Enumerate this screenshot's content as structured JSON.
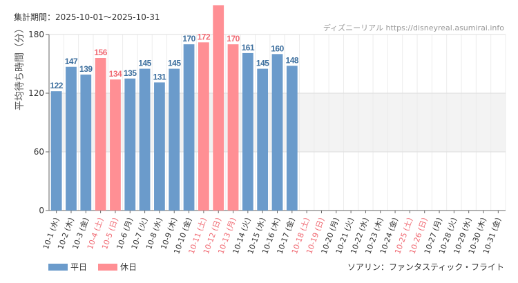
{
  "header": {
    "period": "集計期間：2025-10-01～2025-10-31",
    "source": "ディズニーリアル https://disneyreal.asumirai.info"
  },
  "attraction": "ソアリン：ファンタスティック・フライト",
  "legend": [
    {
      "label": "平日",
      "color": "#6b9bcb"
    },
    {
      "label": "休日",
      "color": "#ff8f94"
    }
  ],
  "colors": {
    "weekday_bar": "#6b9bcb",
    "holiday_bar": "#ff8f94",
    "weekday_label": "#3d6f9e",
    "holiday_label": "#f06a73",
    "band": "#f3f3f3"
  },
  "chart_data": {
    "type": "bar",
    "ylabel": "平均待ち時間（分）",
    "ylim": [
      0,
      180
    ],
    "yticks": [
      0,
      60,
      120,
      180
    ],
    "band": [
      60,
      120
    ],
    "grid": true,
    "categories": [
      "10-1 (水)",
      "10-2 (木)",
      "10-3 (金)",
      "10-4 (土)",
      "10-5 (日)",
      "10-6 (月)",
      "10-7 (火)",
      "10-8 (水)",
      "10-9 (木)",
      "10-10 (金)",
      "10-11 (土)",
      "10-12 (日)",
      "10-13 (月)",
      "10-14 (火)",
      "10-15 (水)",
      "10-16 (木)",
      "10-17 (金)",
      "10-18 (土)",
      "10-19 (日)",
      "10-20 (月)",
      "10-21 (火)",
      "10-22 (水)",
      "10-23 (木)",
      "10-24 (金)",
      "10-25 (土)",
      "10-26 (日)",
      "10-27 (月)",
      "10-28 (火)",
      "10-29 (水)",
      "10-30 (木)",
      "10-31 (金)"
    ],
    "holiday": [
      false,
      false,
      false,
      true,
      true,
      false,
      false,
      false,
      false,
      false,
      true,
      true,
      true,
      false,
      false,
      false,
      false,
      true,
      true,
      false,
      false,
      false,
      false,
      false,
      true,
      true,
      false,
      false,
      false,
      false,
      false
    ],
    "values": [
      122,
      147,
      139,
      156,
      134,
      135,
      145,
      131,
      145,
      170,
      172,
      210,
      170,
      161,
      145,
      160,
      148,
      null,
      null,
      null,
      null,
      null,
      null,
      null,
      null,
      null,
      null,
      null,
      null,
      null,
      null
    ],
    "value_labels": [
      "122",
      "147",
      "139",
      "156",
      "134",
      "135",
      "145",
      "131",
      "145",
      "170",
      "172",
      "",
      "170",
      "161",
      "145",
      "160",
      "148",
      "",
      "",
      "",
      "",
      "",
      "",
      "",
      "",
      "",
      "",
      "",
      "",
      "",
      ""
    ]
  }
}
